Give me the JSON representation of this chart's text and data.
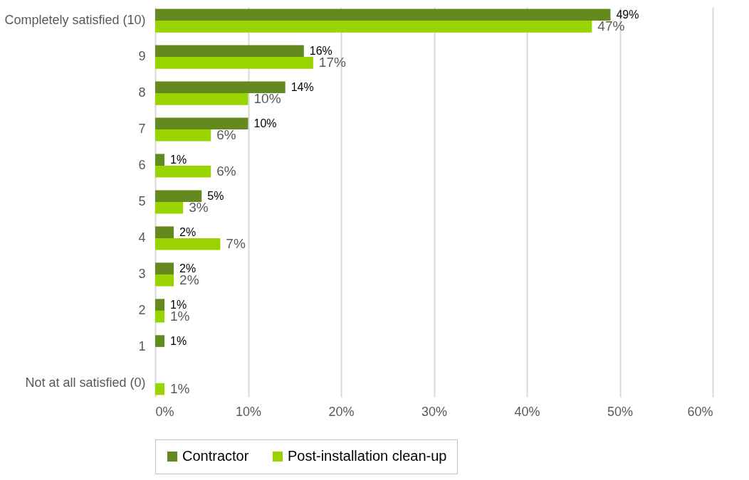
{
  "chart_data": {
    "type": "bar",
    "orientation": "horizontal",
    "categories": [
      "Completely satisfied (10)",
      "9",
      "8",
      "7",
      "6",
      "5",
      "4",
      "3",
      "2",
      "1",
      "Not at all satisfied (0)"
    ],
    "series": [
      {
        "name": "Contractor",
        "color": "#64891e",
        "values": [
          49,
          16,
          14,
          10,
          1,
          5,
          2,
          2,
          1,
          1,
          null
        ],
        "value_labels": [
          "49%",
          "16%",
          "14%",
          "10%",
          "1%",
          "5%",
          "2%",
          "2%",
          "1%",
          "1%",
          null
        ]
      },
      {
        "name": "Post-installation clean-up",
        "color": "#99d400",
        "values": [
          47,
          17,
          10,
          6,
          6,
          3,
          7,
          2,
          1,
          null,
          1
        ],
        "value_labels": [
          "47%",
          "17%",
          "10%",
          "6%",
          "6%",
          "3%",
          "7%",
          "2%",
          "1%",
          null,
          "1%"
        ]
      }
    ],
    "xlim": [
      0,
      60
    ],
    "xticks": [
      {
        "value": 0,
        "label": "0%"
      },
      {
        "value": 10,
        "label": "10%"
      },
      {
        "value": 20,
        "label": "20%"
      },
      {
        "value": 30,
        "label": "30%"
      },
      {
        "value": 40,
        "label": "40%"
      },
      {
        "value": 50,
        "label": "50%"
      },
      {
        "value": 60,
        "label": "60%"
      }
    ],
    "grid": "x",
    "legend": "bottom"
  }
}
